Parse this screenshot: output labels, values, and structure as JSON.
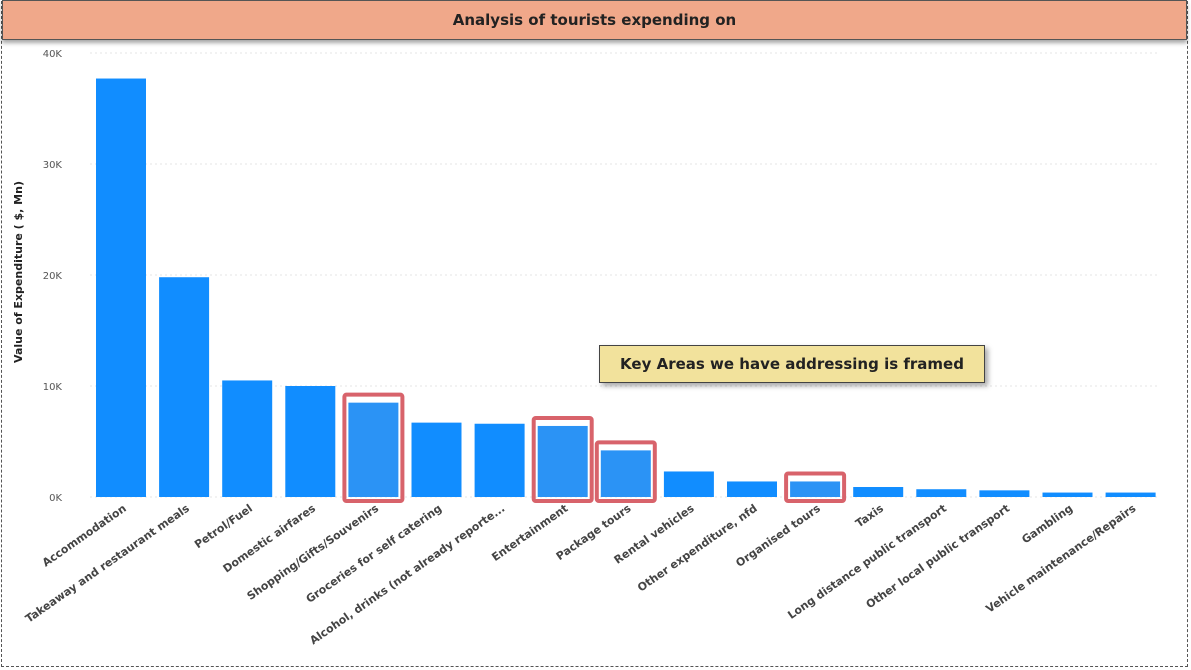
{
  "title": "Analysis of tourists expending on",
  "callout": "Key Areas we have addressing is framed",
  "colors": {
    "bar": "#118dff",
    "highlight_frame": "#d8636b",
    "title_bg": "#f0a88a",
    "callout_bg": "#f2e29c"
  },
  "chart_data": {
    "type": "bar",
    "title": "",
    "xlabel": "",
    "ylabel": "Value of Expenditure ( $, Mn)",
    "ylim": [
      0,
      40000
    ],
    "yticks": [
      0,
      10000,
      20000,
      30000,
      40000
    ],
    "ytick_labels": [
      "0K",
      "10K",
      "20K",
      "30K",
      "40K"
    ],
    "grid": true,
    "categories": [
      "Accommodation",
      "Takeaway and restaurant meals",
      "Petrol/Fuel",
      "Domestic airfares",
      "Shopping/Gifts/Souvenirs",
      "Groceries for self catering",
      "Alcohol, drinks (not already reporte...",
      "Entertainment",
      "Package tours",
      "Rental vehicles",
      "Other expenditure, nfd",
      "Organised tours",
      "Taxis",
      "Long distance public transport",
      "Other local public transport",
      "Gambling",
      "Vehicle maintenance/Repairs"
    ],
    "values": [
      37700,
      19800,
      10500,
      10000,
      8500,
      6700,
      6600,
      6400,
      4200,
      2300,
      1400,
      1400,
      900,
      700,
      600,
      400,
      400
    ],
    "highlighted": [
      "Shopping/Gifts/Souvenirs",
      "Entertainment",
      "Package tours",
      "Organised tours"
    ]
  }
}
